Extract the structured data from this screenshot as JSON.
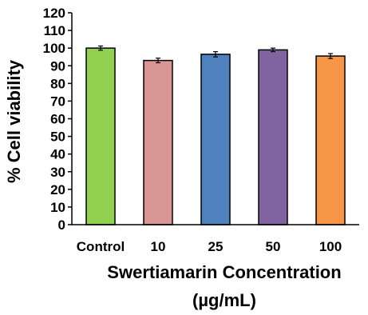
{
  "chart_data": {
    "type": "bar",
    "categories": [
      "Control",
      "10",
      "25",
      "50",
      "100"
    ],
    "values": [
      100,
      93,
      96.5,
      99,
      95.5
    ],
    "errors": [
      1.2,
      1.3,
      1.5,
      1.0,
      1.4
    ],
    "colors": [
      "#92D050",
      "#DA9694",
      "#4F81BD",
      "#8064A2",
      "#F79646"
    ],
    "ylim": [
      0,
      120
    ],
    "yticks": [
      0,
      10,
      20,
      30,
      40,
      50,
      60,
      70,
      80,
      90,
      100,
      110,
      120
    ],
    "ylabel": "% Cell viability",
    "xlabel_line1": "Swertiamarin Concentration",
    "xlabel_line2": "(µg/mL)"
  }
}
